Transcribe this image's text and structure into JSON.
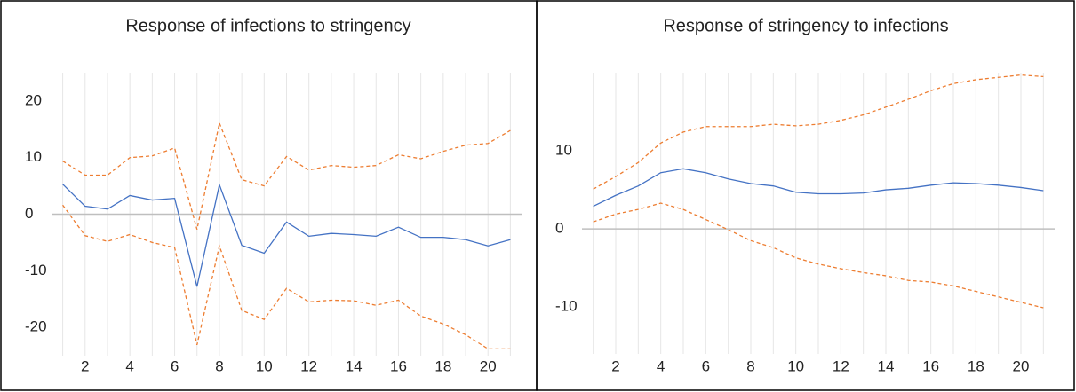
{
  "chart_data": [
    {
      "type": "line",
      "title": "Response of infections to stringency",
      "x": [
        1,
        2,
        3,
        4,
        5,
        6,
        7,
        8,
        9,
        10,
        11,
        12,
        13,
        14,
        15,
        16,
        17,
        18,
        19,
        20,
        21
      ],
      "xlim": [
        0.5,
        21.5
      ],
      "xticks": [
        2,
        4,
        6,
        8,
        10,
        12,
        14,
        16,
        18,
        20
      ],
      "ylim": [
        -25,
        25
      ],
      "yticks": [
        -20,
        -10,
        0,
        10,
        20
      ],
      "x_grid": true,
      "zero_line": true,
      "series": [
        {
          "color": "#4472c4",
          "dashed": false,
          "values": [
            5.3,
            1.4,
            0.9,
            3.3,
            2.5,
            2.8,
            -12.8,
            5.2,
            -5.5,
            -6.9,
            -1.4,
            -3.9,
            -3.4,
            -3.6,
            -3.9,
            -2.3,
            -4.1,
            -4.1,
            -4.5,
            -5.6,
            -4.5
          ]
        },
        {
          "color": "#ed7d31",
          "dashed": true,
          "values": [
            9.4,
            6.9,
            6.9,
            10,
            10.3,
            11.7,
            -2.7,
            16.1,
            6.1,
            5,
            10.2,
            7.8,
            8.6,
            8.3,
            8.6,
            10.5,
            9.8,
            11.1,
            12.2,
            12.5,
            14.8
          ]
        },
        {
          "color": "#ed7d31",
          "dashed": true,
          "values": [
            1.6,
            -3.8,
            -4.8,
            -3.6,
            -5,
            -5.9,
            -23.1,
            -5.6,
            -17,
            -18.6,
            -13.1,
            -15.5,
            -15.2,
            -15.3,
            -16.1,
            -15.2,
            -18,
            -19.4,
            -21.3,
            -23.8,
            -23.8
          ]
        }
      ]
    },
    {
      "type": "line",
      "title": "Response of stringency to infections",
      "x": [
        1,
        2,
        3,
        4,
        5,
        6,
        7,
        8,
        9,
        10,
        11,
        12,
        13,
        14,
        15,
        16,
        17,
        18,
        19,
        20,
        21
      ],
      "xlim": [
        0.5,
        21.5
      ],
      "xticks": [
        2,
        4,
        6,
        8,
        10,
        12,
        14,
        16,
        18,
        20
      ],
      "ylim": [
        -16,
        20
      ],
      "yticks": [
        -10,
        0,
        10
      ],
      "x_grid": true,
      "zero_line": true,
      "series": [
        {
          "color": "#4472c4",
          "dashed": false,
          "values": [
            2.9,
            4.3,
            5.5,
            7.2,
            7.7,
            7.2,
            6.4,
            5.8,
            5.5,
            4.7,
            4.5,
            4.5,
            4.6,
            5,
            5.2,
            5.6,
            5.9,
            5.8,
            5.6,
            5.3,
            4.9
          ]
        },
        {
          "color": "#ed7d31",
          "dashed": true,
          "values": [
            5.1,
            6.7,
            8.5,
            11,
            12.4,
            13.1,
            13.1,
            13.1,
            13.4,
            13.2,
            13.4,
            13.9,
            14.6,
            15.6,
            16.6,
            17.7,
            18.6,
            19.1,
            19.4,
            19.7,
            19.5
          ]
        },
        {
          "color": "#ed7d31",
          "dashed": true,
          "values": [
            0.9,
            1.9,
            2.5,
            3.3,
            2.5,
            1.2,
            -0.1,
            -1.5,
            -2.4,
            -3.7,
            -4.5,
            -5.1,
            -5.6,
            -6,
            -6.6,
            -6.8,
            -7.3,
            -8,
            -8.7,
            -9.4,
            -10.1
          ]
        }
      ]
    }
  ]
}
